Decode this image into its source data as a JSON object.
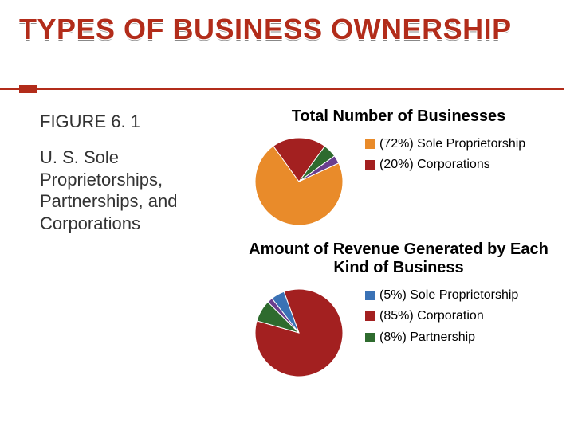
{
  "title": "TYPES OF BUSINESS OWNERSHIP",
  "figure_label": "FIGURE 6. 1",
  "subtitle": "U. S. Sole Proprietorships, Partnerships, and Corporations",
  "title_color": "#b22c1a",
  "background_color": "#ffffff",
  "chart1": {
    "type": "pie",
    "heading": "Total Number of Businesses",
    "heading_fontsize": 20,
    "radius": 55,
    "slices": [
      {
        "label": "(72%) Sole Proprietorship",
        "value": 72,
        "color": "#e98b2a"
      },
      {
        "label": "(20%) Corporations",
        "value": 20,
        "color": "#a32020"
      },
      {
        "label": "",
        "value": 5,
        "color": "#2e6b2e"
      },
      {
        "label": "",
        "value": 3,
        "color": "#6a3e8f"
      }
    ],
    "legend": [
      {
        "text": "(72%) Sole Proprietorship",
        "swatch": "#e98b2a"
      },
      {
        "text": "(20%) Corporations",
        "swatch": "#a32020"
      }
    ]
  },
  "chart2": {
    "type": "pie",
    "heading": "Amount of Revenue Generated by Each Kind of Business",
    "heading_fontsize": 20,
    "radius": 55,
    "slices": [
      {
        "label": "(85%) Corporation",
        "value": 85,
        "color": "#a32020"
      },
      {
        "label": "(8%) Partnership",
        "value": 8,
        "color": "#2e6b2e"
      },
      {
        "label": "",
        "value": 2,
        "color": "#6a3e8f"
      },
      {
        "label": "(5%) Sole Proprietorship",
        "value": 5,
        "color": "#3a72b5"
      }
    ],
    "legend": [
      {
        "text": "(5%) Sole Proprietorship",
        "swatch": "#3a72b5"
      },
      {
        "text": "(85%) Corporation",
        "swatch": "#a32020"
      },
      {
        "text": "(8%) Partnership",
        "swatch": "#2e6b2e"
      }
    ]
  }
}
